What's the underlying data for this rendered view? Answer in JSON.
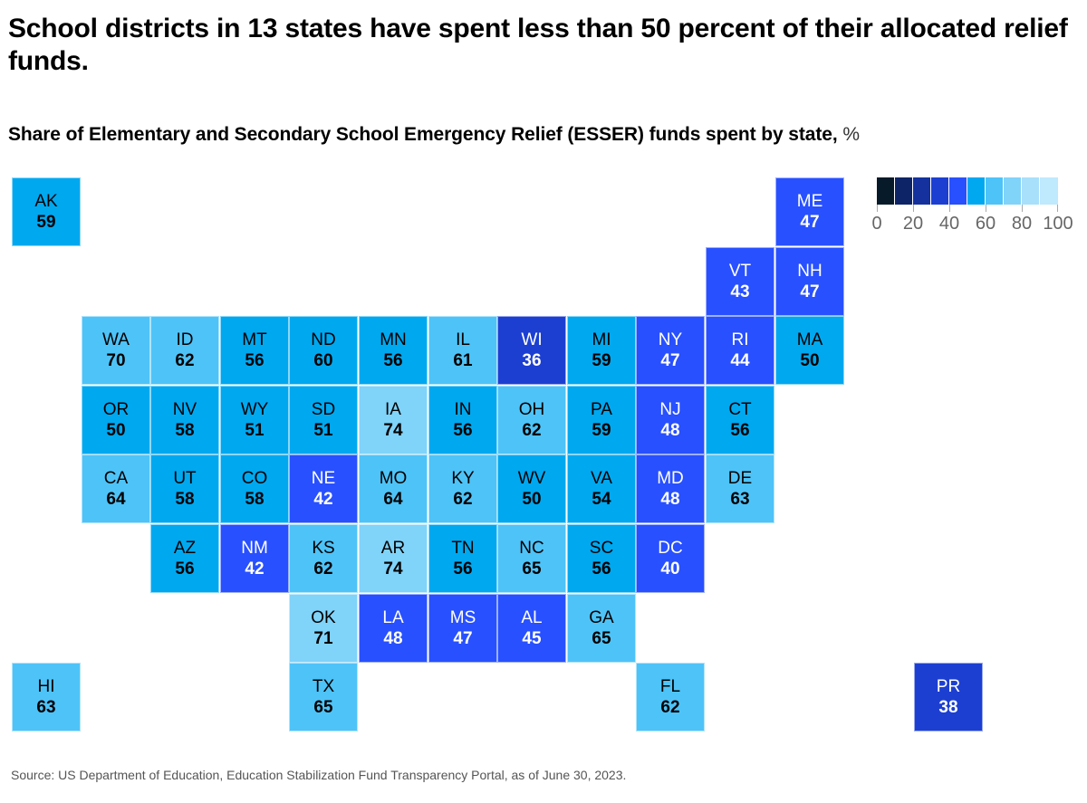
{
  "title": "School districts in 13 states have spent less than 50 percent of their allocated relief funds.",
  "subtitle": "Share of Elementary and Secondary School Emergency Relief (ESSER) funds spent by state,",
  "subtitle_unit": "%",
  "source": "Source: US Department of Education, Education Stabilization Fund Transparency Portal, as of June 30, 2023.",
  "chart_data": {
    "type": "heatmap",
    "subtype": "tile-grid-map",
    "title": "School districts in 13 states have spent less than 50 percent of their allocated relief funds.",
    "subtitle": "Share of Elementary and Secondary School Emergency Relief (ESSER) funds spent by state, %",
    "value_unit": "%",
    "legend": {
      "placement": "top-right",
      "range": [
        0,
        100
      ],
      "bin_size": 10,
      "tick_labels": [
        "0",
        "20",
        "40",
        "60",
        "80",
        "100"
      ],
      "tick_values": [
        0,
        20,
        40,
        60,
        80,
        100
      ],
      "colors": [
        "#061a2a",
        "#0d2466",
        "#14319e",
        "#1c3fd2",
        "#2850ff",
        "#00a8f0",
        "#4ec3f8",
        "#80d3f9",
        "#a8e0fb",
        "#bfe9fd"
      ]
    },
    "states": [
      {
        "abbr": "AK",
        "value": 59,
        "bin": 5,
        "col": 0,
        "row": 0
      },
      {
        "abbr": "ME",
        "value": 47,
        "bin": 4,
        "col": 11,
        "row": 0
      },
      {
        "abbr": "VT",
        "value": 43,
        "bin": 4,
        "col": 10,
        "row": 1
      },
      {
        "abbr": "NH",
        "value": 47,
        "bin": 4,
        "col": 11,
        "row": 1
      },
      {
        "abbr": "WA",
        "value": 70,
        "bin": 6,
        "col": 1,
        "row": 2
      },
      {
        "abbr": "ID",
        "value": 62,
        "bin": 6,
        "col": 2,
        "row": 2
      },
      {
        "abbr": "MT",
        "value": 56,
        "bin": 5,
        "col": 3,
        "row": 2
      },
      {
        "abbr": "ND",
        "value": 60,
        "bin": 5,
        "col": 4,
        "row": 2
      },
      {
        "abbr": "MN",
        "value": 56,
        "bin": 5,
        "col": 5,
        "row": 2
      },
      {
        "abbr": "IL",
        "value": 61,
        "bin": 6,
        "col": 6,
        "row": 2
      },
      {
        "abbr": "WI",
        "value": 36,
        "bin": 3,
        "col": 7,
        "row": 2
      },
      {
        "abbr": "MI",
        "value": 59,
        "bin": 5,
        "col": 8,
        "row": 2
      },
      {
        "abbr": "NY",
        "value": 47,
        "bin": 4,
        "col": 9,
        "row": 2
      },
      {
        "abbr": "RI",
        "value": 44,
        "bin": 4,
        "col": 10,
        "row": 2
      },
      {
        "abbr": "MA",
        "value": 50,
        "bin": 5,
        "col": 11,
        "row": 2
      },
      {
        "abbr": "OR",
        "value": 50,
        "bin": 5,
        "col": 1,
        "row": 3
      },
      {
        "abbr": "NV",
        "value": 58,
        "bin": 5,
        "col": 2,
        "row": 3
      },
      {
        "abbr": "WY",
        "value": 51,
        "bin": 5,
        "col": 3,
        "row": 3
      },
      {
        "abbr": "SD",
        "value": 51,
        "bin": 5,
        "col": 4,
        "row": 3
      },
      {
        "abbr": "IA",
        "value": 74,
        "bin": 7,
        "col": 5,
        "row": 3
      },
      {
        "abbr": "IN",
        "value": 56,
        "bin": 5,
        "col": 6,
        "row": 3
      },
      {
        "abbr": "OH",
        "value": 62,
        "bin": 6,
        "col": 7,
        "row": 3
      },
      {
        "abbr": "PA",
        "value": 59,
        "bin": 5,
        "col": 8,
        "row": 3
      },
      {
        "abbr": "NJ",
        "value": 48,
        "bin": 4,
        "col": 9,
        "row": 3
      },
      {
        "abbr": "CT",
        "value": 56,
        "bin": 5,
        "col": 10,
        "row": 3
      },
      {
        "abbr": "CA",
        "value": 64,
        "bin": 6,
        "col": 1,
        "row": 4
      },
      {
        "abbr": "UT",
        "value": 58,
        "bin": 5,
        "col": 2,
        "row": 4
      },
      {
        "abbr": "CO",
        "value": 58,
        "bin": 5,
        "col": 3,
        "row": 4
      },
      {
        "abbr": "NE",
        "value": 42,
        "bin": 4,
        "col": 4,
        "row": 4
      },
      {
        "abbr": "MO",
        "value": 64,
        "bin": 6,
        "col": 5,
        "row": 4
      },
      {
        "abbr": "KY",
        "value": 62,
        "bin": 6,
        "col": 6,
        "row": 4
      },
      {
        "abbr": "WV",
        "value": 50,
        "bin": 5,
        "col": 7,
        "row": 4
      },
      {
        "abbr": "VA",
        "value": 54,
        "bin": 5,
        "col": 8,
        "row": 4
      },
      {
        "abbr": "MD",
        "value": 48,
        "bin": 4,
        "col": 9,
        "row": 4
      },
      {
        "abbr": "DE",
        "value": 63,
        "bin": 6,
        "col": 10,
        "row": 4
      },
      {
        "abbr": "AZ",
        "value": 56,
        "bin": 5,
        "col": 2,
        "row": 5
      },
      {
        "abbr": "NM",
        "value": 42,
        "bin": 4,
        "col": 3,
        "row": 5
      },
      {
        "abbr": "KS",
        "value": 62,
        "bin": 6,
        "col": 4,
        "row": 5
      },
      {
        "abbr": "AR",
        "value": 74,
        "bin": 7,
        "col": 5,
        "row": 5
      },
      {
        "abbr": "TN",
        "value": 56,
        "bin": 5,
        "col": 6,
        "row": 5
      },
      {
        "abbr": "NC",
        "value": 65,
        "bin": 6,
        "col": 7,
        "row": 5
      },
      {
        "abbr": "SC",
        "value": 56,
        "bin": 5,
        "col": 8,
        "row": 5
      },
      {
        "abbr": "DC",
        "value": 40,
        "bin": 4,
        "col": 9,
        "row": 5
      },
      {
        "abbr": "OK",
        "value": 71,
        "bin": 7,
        "col": 4,
        "row": 6
      },
      {
        "abbr": "LA",
        "value": 48,
        "bin": 4,
        "col": 5,
        "row": 6
      },
      {
        "abbr": "MS",
        "value": 47,
        "bin": 4,
        "col": 6,
        "row": 6
      },
      {
        "abbr": "AL",
        "value": 45,
        "bin": 4,
        "col": 7,
        "row": 6
      },
      {
        "abbr": "GA",
        "value": 65,
        "bin": 6,
        "col": 8,
        "row": 6
      },
      {
        "abbr": "HI",
        "value": 63,
        "bin": 6,
        "col": 0,
        "row": 7
      },
      {
        "abbr": "TX",
        "value": 65,
        "bin": 6,
        "col": 4,
        "row": 7
      },
      {
        "abbr": "FL",
        "value": 62,
        "bin": 6,
        "col": 9,
        "row": 7
      },
      {
        "abbr": "PR",
        "value": 38,
        "bin": 3,
        "col": 13,
        "row": 7
      }
    ]
  }
}
